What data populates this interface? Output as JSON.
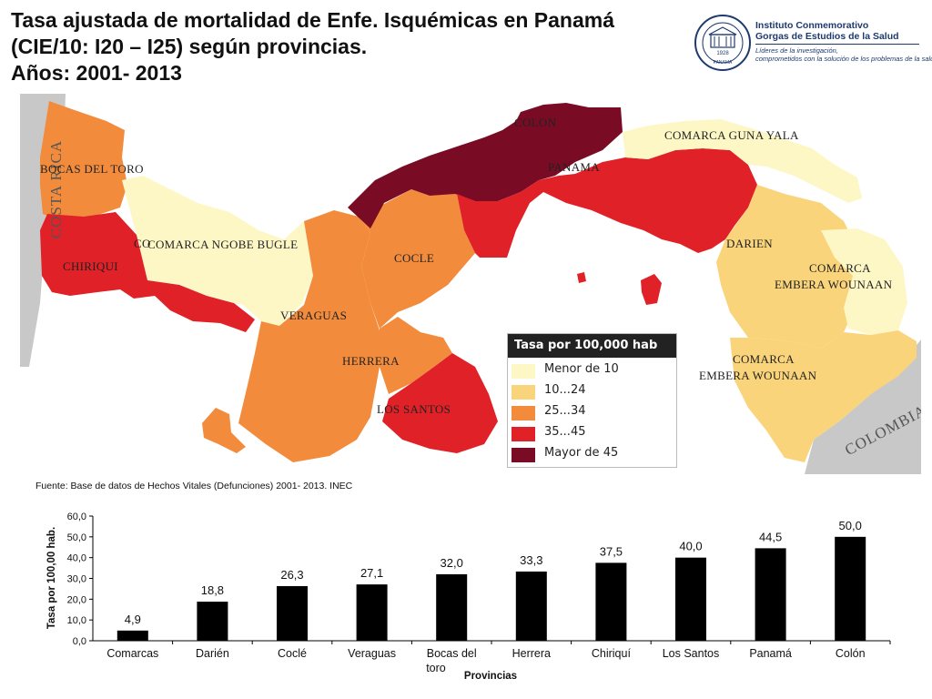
{
  "title": {
    "line1": "Tasa ajustada de mortalidad de Enfe. Isquémicas en Panamá",
    "line2": "(CIE/10: I20 – I25) según provincias.",
    "line3": "Años: 2001- 2013"
  },
  "logo": {
    "name_line1": "Instituto Conmemorativo",
    "name_line2": "Gorgas de Estudios de la Salud",
    "tagline_line1": "Líderes de la investigación,",
    "tagline_line2": "comprometidos con la solución de los problemas de la salud",
    "seal_year": "1928",
    "seal_word": "PANAMA"
  },
  "map": {
    "labels": {
      "costa_rica": "COSTA RICA",
      "colombia": "COLOMBIA",
      "bocas": "BOCAS DEL TORO",
      "chiriqui": "CHIRIQUI",
      "ngobe": "COMARCA NGOBE BUGLE",
      "ngobe_co": "CO",
      "veraguas": "VERAGUAS",
      "cocle": "COCLE",
      "herrera": "HERRERA",
      "los_santos": "LOS SANTOS",
      "colon": "COLON",
      "panama": "PANAMA",
      "guna_yala": "COMARCA GUNA YALA",
      "darien": "DARIEN",
      "embera1_l1": "COMARCA",
      "embera1_l2": "EMBERA WOUNAAN",
      "embera2_l1": "COMARCA",
      "embera2_l2": "EMBERA WOUNAAN"
    },
    "fill_colors": {
      "menor_10": "#fdf7c6",
      "r10_24": "#f9d47a",
      "r25_34": "#f28c3c",
      "r35_45": "#e02127",
      "mayor_45": "#7a0b25",
      "neighbor": "#c8c8c8"
    }
  },
  "legend": {
    "title": "Tasa por 100,000 hab",
    "items": [
      {
        "label": "Menor de 10",
        "color": "#fdf7c6"
      },
      {
        "label": "10...24",
        "color": "#f9d47a"
      },
      {
        "label": "25...34",
        "color": "#f28c3c"
      },
      {
        "label": "35...45",
        "color": "#e02127"
      },
      {
        "label": "Mayor de 45",
        "color": "#7a0b25"
      }
    ]
  },
  "source": "Fuente: Base de datos de Hechos Vitales (Defunciones) 2001- 2013. INEC",
  "chart_data": {
    "type": "bar",
    "categories": [
      "Comarcas",
      "Darién",
      "Coclé",
      "Veraguas",
      "Bocas del toro",
      "Herrera",
      "Chiriquí",
      "Los Santos",
      "Panamá",
      "Colón"
    ],
    "values": [
      4.9,
      18.8,
      26.3,
      27.1,
      32.0,
      33.3,
      37.5,
      40.0,
      44.5,
      50.0
    ],
    "value_labels": [
      "4,9",
      "18,8",
      "26,3",
      "27,1",
      "32,0",
      "33,3",
      "37,5",
      "40,0",
      "44,5",
      "50,0"
    ],
    "category_labels": [
      "Comarcas",
      "Darién",
      "Coclé",
      "Veraguas",
      "Bocas del",
      "Herrera",
      "Chiriquí",
      "Los Santos",
      "Panamá",
      "Colón"
    ],
    "category_label_extra": "toro",
    "xlabel": "Provincias",
    "ylabel": "Tasa por 100,00 hab.",
    "ylim": [
      0,
      60
    ],
    "yticks": [
      "0,0",
      "10,0",
      "20,0",
      "30,0",
      "40,0",
      "50,0",
      "60,0"
    ],
    "bar_color": "#000000",
    "grid": false
  }
}
